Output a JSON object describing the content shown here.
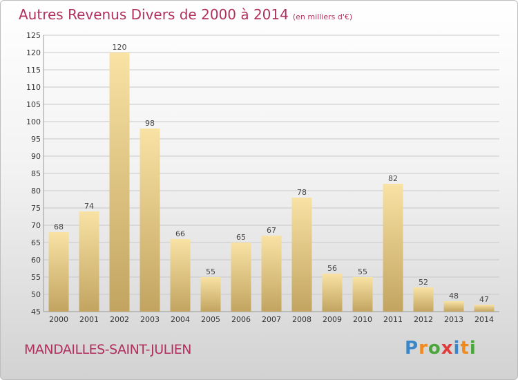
{
  "title": "Autres Revenus Divers de 2000 à 2014",
  "unit": "(en milliers d'€)",
  "place": "MANDAILLES-SAINT-JULIEN",
  "logo": {
    "letters": [
      "P",
      "r",
      "o",
      "x",
      "i",
      "t",
      "i"
    ],
    "colors": [
      "#3a86c8",
      "#f08a1e",
      "#4aa63a",
      "#e23b3b",
      "#3a86c8",
      "#f08a1e",
      "#4aa63a"
    ]
  },
  "colors": {
    "title": "#b0305e",
    "bar_light": "#f8e2a4",
    "bar_dark": "#c2a460",
    "grid": "#c8c8c8"
  },
  "chart_data": {
    "type": "bar",
    "categories": [
      "2000",
      "2001",
      "2002",
      "2003",
      "2004",
      "2005",
      "2006",
      "2007",
      "2008",
      "2009",
      "2010",
      "2011",
      "2012",
      "2013",
      "2014"
    ],
    "values": [
      68,
      74,
      120,
      98,
      66,
      55,
      65,
      67,
      78,
      56,
      55,
      82,
      52,
      48,
      47
    ],
    "title": "Autres Revenus Divers de 2000 à 2014",
    "ylim": [
      45,
      125
    ],
    "yticks": [
      45,
      50,
      55,
      60,
      65,
      70,
      75,
      80,
      85,
      90,
      95,
      100,
      105,
      110,
      115,
      120,
      125
    ],
    "grid": true,
    "data_labels": true
  }
}
